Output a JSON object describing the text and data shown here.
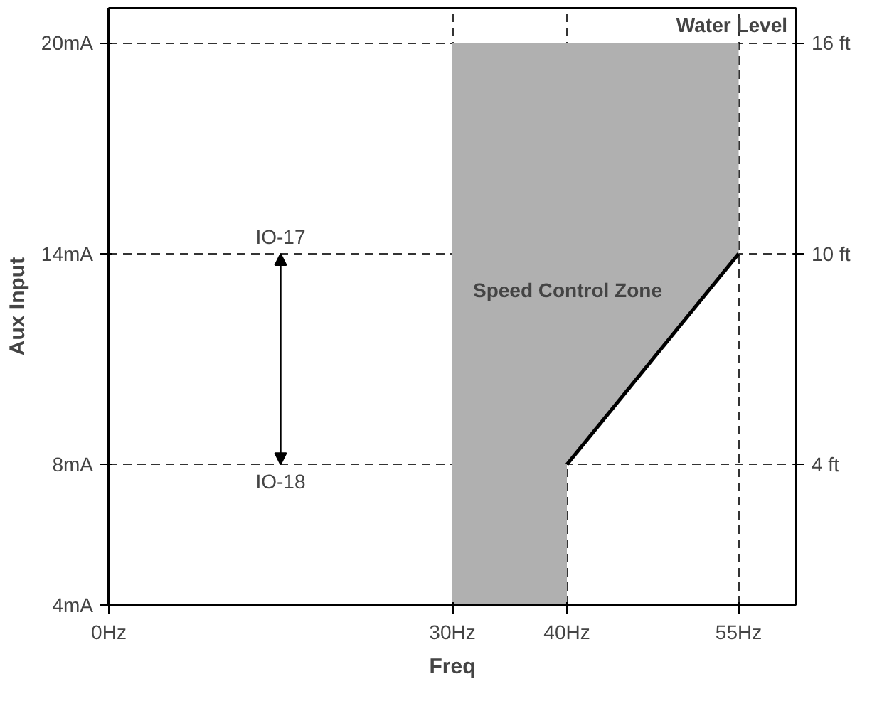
{
  "chart_data": {
    "type": "line",
    "xlabel": "Freq",
    "ylabel": "Aux Input",
    "xlim": [
      0,
      60
    ],
    "ylim": [
      4,
      21
    ],
    "y2lim": [
      0,
      17
    ],
    "xticks": [
      {
        "value": 0,
        "label": "0Hz"
      },
      {
        "value": 30,
        "label": "30Hz"
      },
      {
        "value": 40,
        "label": "40Hz"
      },
      {
        "value": 55,
        "label": "55Hz"
      }
    ],
    "yticks": [
      {
        "value": 4,
        "label": "4mA"
      },
      {
        "value": 8,
        "label": "8mA"
      },
      {
        "value": 14,
        "label": "14mA"
      },
      {
        "value": 20,
        "label": "20mA"
      }
    ],
    "y2ticks": [
      {
        "value": 4,
        "label": "4 ft"
      },
      {
        "value": 10,
        "label": "10 ft"
      },
      {
        "value": 16,
        "label": "16 ft"
      }
    ],
    "grid": true,
    "line_style": "solid",
    "marker": "none",
    "series": [
      {
        "type": "area",
        "color": "#b0b0b0",
        "x": [
          30,
          40
        ],
        "values": [
          20,
          20
        ]
      },
      {
        "color": "#000000",
        "x": [
          40,
          55
        ],
        "values": [
          8,
          14
        ],
        "lower": [
          8,
          14
        ],
        "upper": [
          20,
          20
        ]
      }
    ],
    "annotations": [
      "Speed Control Zone",
      "IO-17",
      "IO-18",
      "Water Level"
    ]
  }
}
